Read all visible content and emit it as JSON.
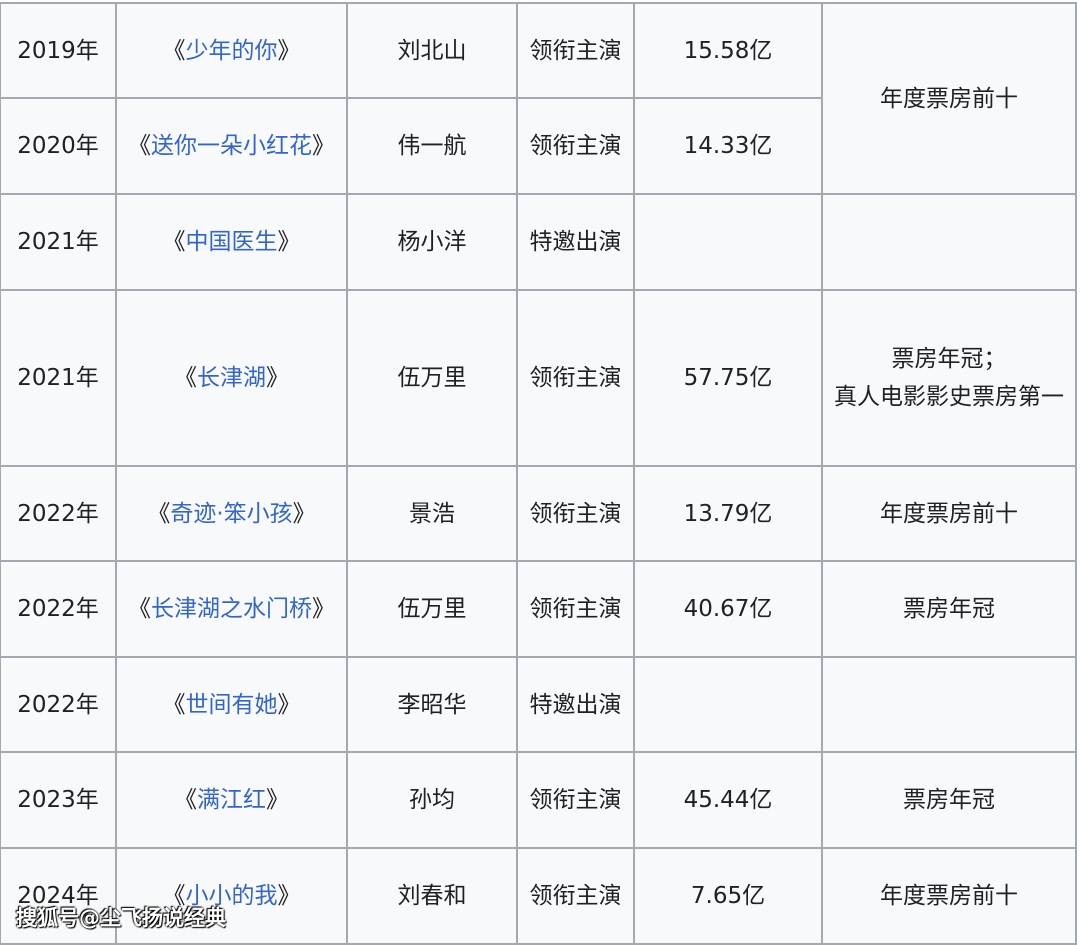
{
  "rows": [
    {
      "year": "2019年",
      "title": "少年的你",
      "role_name": "刘北山",
      "role_type": "领衔主演",
      "box": "15.58亿",
      "note": "年度票房前十",
      "note_rowspan": 2
    },
    {
      "year": "2020年",
      "title": "送你一朵小红花",
      "role_name": "伟一航",
      "role_type": "领衔主演",
      "box": "14.33亿"
    },
    {
      "year": "2021年",
      "title": "中国医生",
      "role_name": "杨小洋",
      "role_type": "特邀出演",
      "box": "",
      "note": ""
    },
    {
      "year": "2021年",
      "title": "长津湖",
      "role_name": "伍万里",
      "role_type": "领衔主演",
      "box": "57.75亿",
      "note": "票房年冠；",
      "note2": "真人电影影史票房第一"
    },
    {
      "year": "2022年",
      "title": "奇迹·笨小孩",
      "role_name": "景浩",
      "role_type": "领衔主演",
      "box": "13.79亿",
      "note": "年度票房前十"
    },
    {
      "year": "2022年",
      "title": "长津湖之水门桥",
      "role_name": "伍万里",
      "role_type": "领衔主演",
      "box": "40.67亿",
      "note": "票房年冠"
    },
    {
      "year": "2022年",
      "title": "世间有她",
      "role_name": "李昭华",
      "role_type": "特邀出演",
      "box": "",
      "note": ""
    },
    {
      "year": "2023年",
      "title": "满江红",
      "role_name": "孙均",
      "role_type": "领衔主演",
      "box": "45.44亿",
      "note": "票房年冠"
    },
    {
      "year": "2024年",
      "title": "小小的我",
      "role_name": "刘春和",
      "role_type": "领衔主演",
      "box": "7.65亿",
      "note": "年度票房前十"
    }
  ],
  "watermark": "搜狐号@尘飞扬说经典",
  "colors": {
    "link": "#3366cc",
    "border": "#a2a9b1",
    "cell_bg": "#f8f9fa"
  }
}
